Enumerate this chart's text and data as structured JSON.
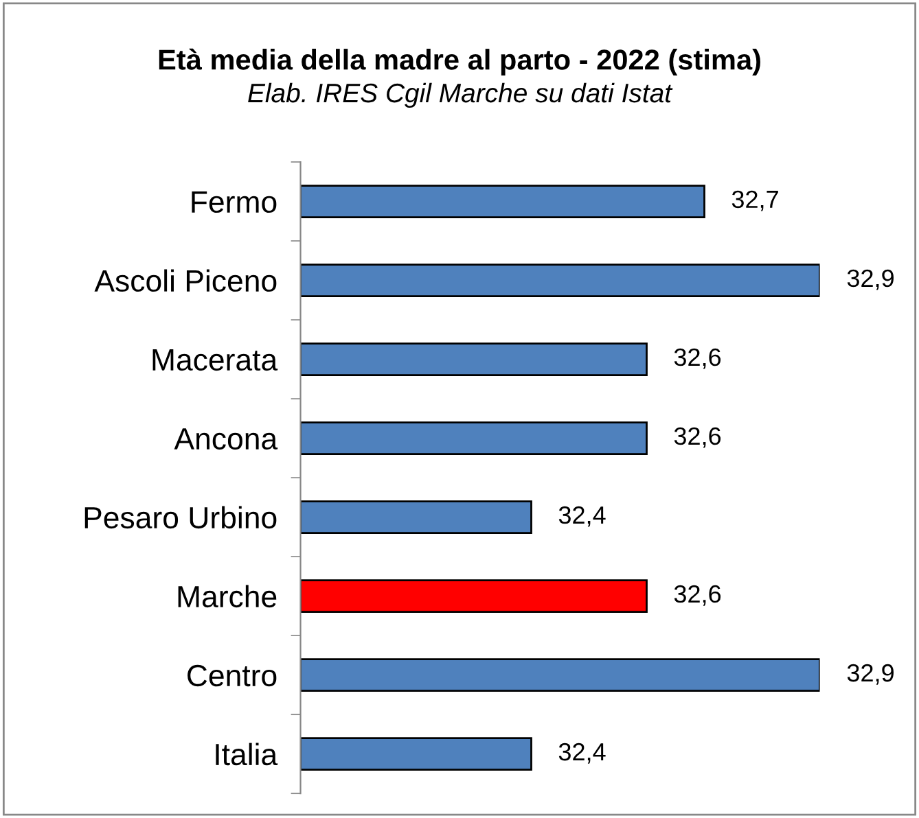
{
  "chart_data": {
    "type": "bar",
    "orientation": "horizontal",
    "title": "Età media della madre al parto - 2022 (stima)",
    "subtitle": "Elab. IRES Cgil Marche su dati Istat",
    "categories": [
      "Fermo",
      "Ascoli Piceno",
      "Macerata",
      "Ancona",
      "Pesaro Urbino",
      "Marche",
      "Centro",
      "Italia"
    ],
    "values": [
      32.7,
      32.9,
      32.6,
      32.6,
      32.4,
      32.6,
      32.9,
      32.4
    ],
    "colors": [
      "#4f81bd",
      "#4f81bd",
      "#4f81bd",
      "#4f81bd",
      "#4f81bd",
      "#ff0000",
      "#4f81bd",
      "#4f81bd"
    ],
    "value_labels": [
      "32,7",
      "32,9",
      "32,6",
      "32,6",
      "32,4",
      "32,6",
      "32,9",
      "32,4"
    ],
    "xlim": [
      32.0,
      32.9
    ],
    "tick_labels": "y",
    "grid": false
  }
}
